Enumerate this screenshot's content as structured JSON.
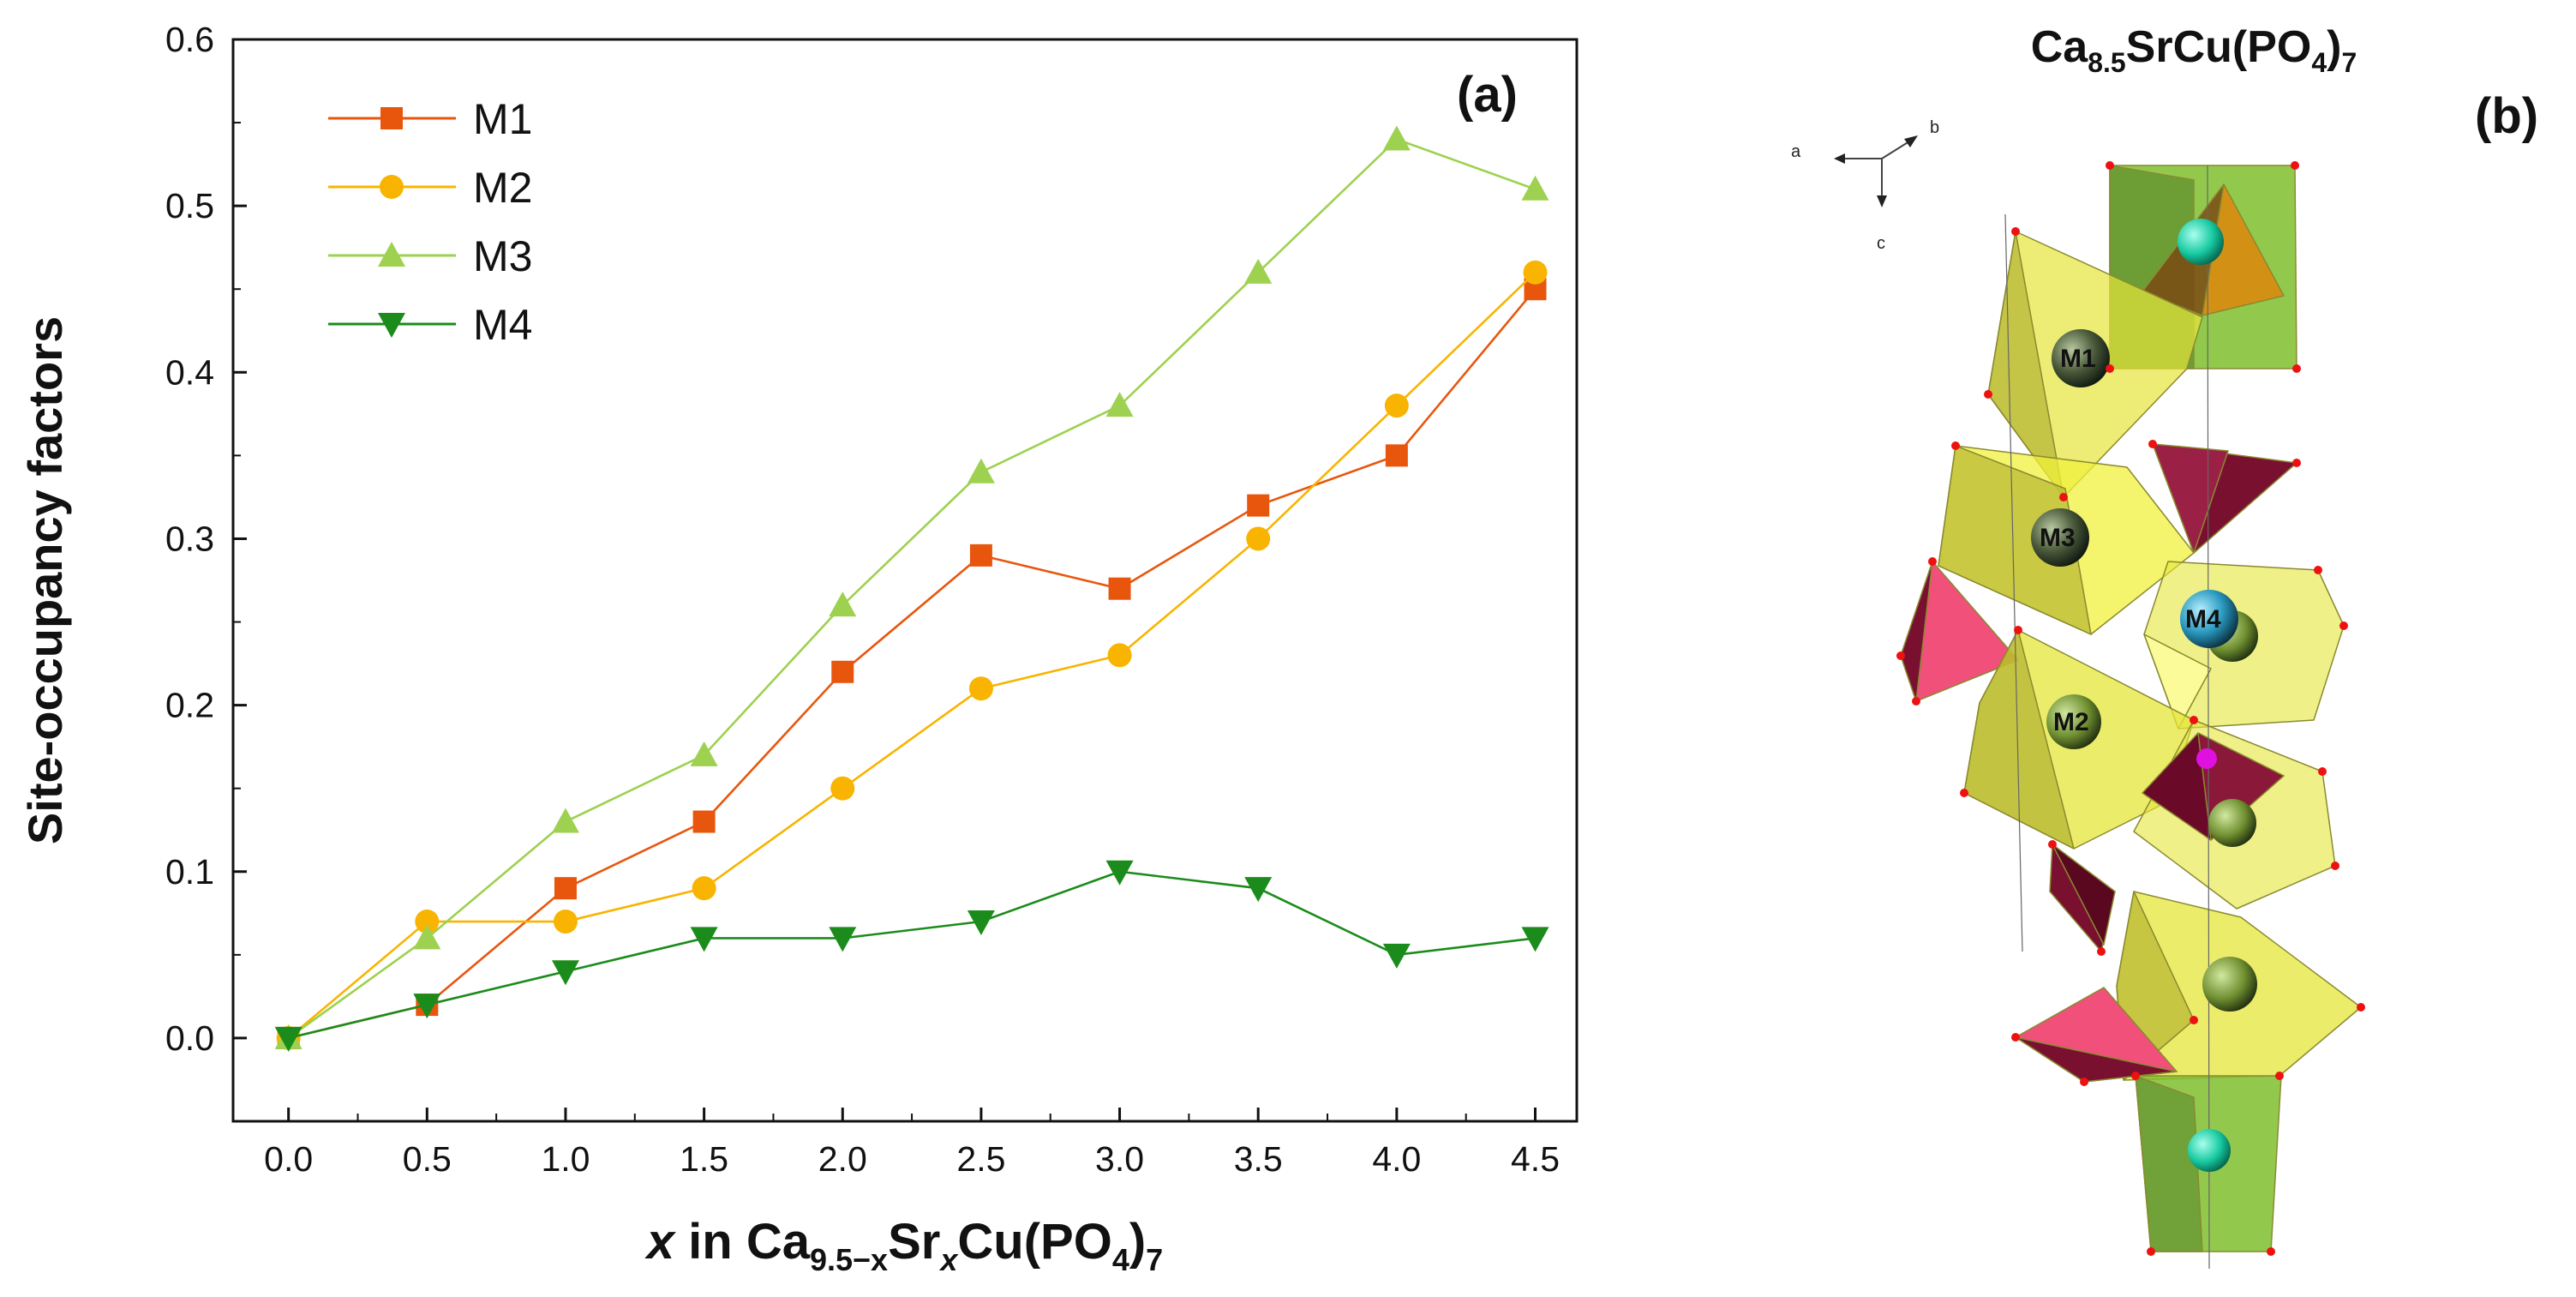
{
  "chart_data": [
    {
      "type": "line",
      "panel_label": "(a)",
      "ylabel": "Site-occupancy factors",
      "xlabel": {
        "prefix": "x",
        "mid": " in Ca",
        "sub1": "9.5−x",
        "sr": "Sr",
        "sub2": "x",
        "cu": "Cu(PO",
        "sub3": "4",
        "close": ")",
        "sub4": "7"
      },
      "x": [
        0.0,
        0.5,
        1.0,
        1.5,
        2.0,
        2.5,
        3.0,
        3.5,
        4.0,
        4.5
      ],
      "x_tick_labels": [
        "0.0",
        "0.5",
        "1.0",
        "1.5",
        "2.0",
        "2.5",
        "3.0",
        "3.5",
        "4.0",
        "4.5"
      ],
      "y_ticks": [
        0.0,
        0.1,
        0.2,
        0.3,
        0.4,
        0.5,
        0.6
      ],
      "y_tick_labels": [
        "0.0",
        "0.1",
        "0.2",
        "0.3",
        "0.4",
        "0.5",
        "0.6"
      ],
      "xlim": [
        -0.2,
        4.65
      ],
      "ylim": [
        -0.05,
        0.6
      ],
      "grid": false,
      "legend_position": "top-left",
      "series": [
        {
          "name": "M1",
          "marker": "square",
          "color": "#e8560e",
          "values": [
            0.0,
            0.02,
            0.09,
            0.13,
            0.22,
            0.29,
            0.27,
            0.32,
            0.35,
            0.45
          ]
        },
        {
          "name": "M2",
          "marker": "circle",
          "color": "#f8b400",
          "values": [
            0.0,
            0.07,
            0.07,
            0.09,
            0.15,
            0.21,
            0.23,
            0.3,
            0.38,
            0.46
          ]
        },
        {
          "name": "M3",
          "marker": "triangle-up",
          "color": "#9dd14f",
          "values": [
            0.0,
            0.06,
            0.13,
            0.17,
            0.26,
            0.34,
            0.38,
            0.46,
            0.54,
            0.51
          ]
        },
        {
          "name": "M4",
          "marker": "triangle-down",
          "color": "#1b8c1b",
          "values": [
            0.0,
            0.02,
            0.04,
            0.06,
            0.06,
            0.07,
            0.1,
            0.09,
            0.05,
            0.06
          ]
        }
      ]
    }
  ],
  "structure": {
    "panel_label": "(b)",
    "title": {
      "base": "Ca",
      "sub1": "8.5",
      "mid": "SrCu(PO",
      "sub2": "4",
      "close": ")",
      "sub3": "7"
    },
    "axes_labels": {
      "a": "a",
      "b": "b",
      "c": "c"
    },
    "site_labels": [
      "M1",
      "M3",
      "M4",
      "M2"
    ],
    "colors": {
      "polyhedra_yellow": "#e6e63a",
      "polyhedra_green": "#7fbf2e",
      "phosphate_pink": "#f0507a",
      "phosphate_dark": "#7a1030",
      "atom_cyan": "#22d0a8",
      "atom_green": "#6f8f30",
      "oxygen_red": "#ee1111"
    }
  }
}
